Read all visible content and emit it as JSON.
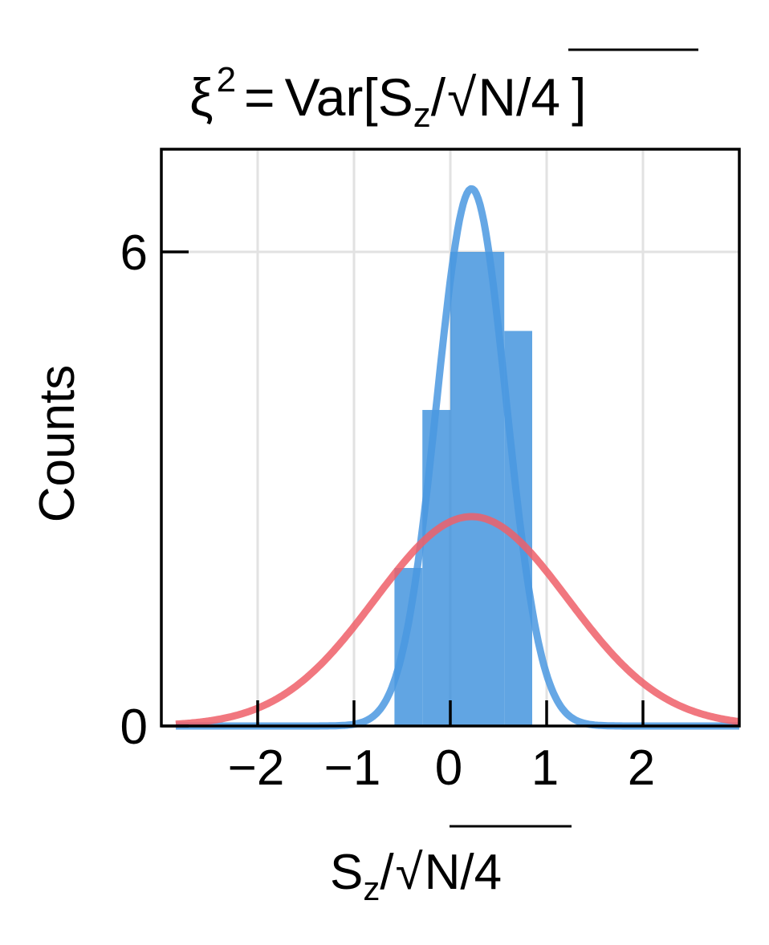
{
  "chart_data": {
    "type": "bar",
    "title": {
      "prefix": "ξ",
      "exponent": "2",
      "equals": "=",
      "func": "Var[",
      "s": "S",
      "sub": "z",
      "slash": "/",
      "root": "√",
      "radicand": "N/4",
      "close": "]"
    },
    "xlabel": {
      "s": "S",
      "sub": "z",
      "slash": "/",
      "root": "√",
      "radicand": "N/4"
    },
    "ylabel": "Counts",
    "xlim": [
      -3.0,
      3.0
    ],
    "ylim": [
      0,
      7.3
    ],
    "xticks": [
      -2,
      -1,
      0,
      1,
      2
    ],
    "xtick_labels": [
      "−2",
      "−1",
      "0",
      "1",
      "2"
    ],
    "yticks": [
      0,
      6
    ],
    "ytick_labels": [
      "0",
      "6"
    ],
    "grid": true,
    "histogram": {
      "color": "#3a8fdc",
      "bins": [
        {
          "x0": -0.58,
          "x1": -0.29,
          "count": 2
        },
        {
          "x0": -0.29,
          "x1": 0.0,
          "count": 4
        },
        {
          "x0": 0.0,
          "x1": 0.56,
          "count": 6
        },
        {
          "x0": 0.56,
          "x1": 0.85,
          "count": 5
        }
      ]
    },
    "series": [
      {
        "curve": "gaussian",
        "color": "#4a98e0",
        "mean": 0.22,
        "sd": 0.36,
        "amplitude": 6.8
      },
      {
        "curve": "gaussian",
        "color": "#ee5f68",
        "mean": 0.22,
        "sd": 1.0,
        "amplitude": 2.65
      }
    ]
  }
}
